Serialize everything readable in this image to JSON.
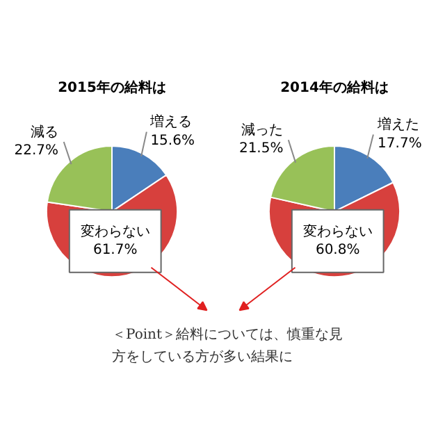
{
  "chart_data": [
    {
      "type": "pie",
      "title": "2015年の給料は",
      "categories": [
        "増える",
        "変わらない",
        "減る"
      ],
      "values": [
        15.6,
        61.7,
        22.7
      ],
      "colors": [
        "#4a7ebb",
        "#d7403d",
        "#98c158"
      ],
      "value_labels": [
        "15.6%",
        "61.7%",
        "22.7%"
      ]
    },
    {
      "type": "pie",
      "title": "2014年の給料は",
      "categories": [
        "増えた",
        "変わらない",
        "減った"
      ],
      "values": [
        17.7,
        60.8,
        21.5
      ],
      "colors": [
        "#4a7ebb",
        "#d7403d",
        "#98c158"
      ],
      "value_labels": [
        "17.7%",
        "60.8%",
        "21.5%"
      ]
    },
    {
      "type": "other",
      "annotations": [
        "＜Point＞給料については、慎重な見方をしている方が多い結果に"
      ]
    }
  ]
}
